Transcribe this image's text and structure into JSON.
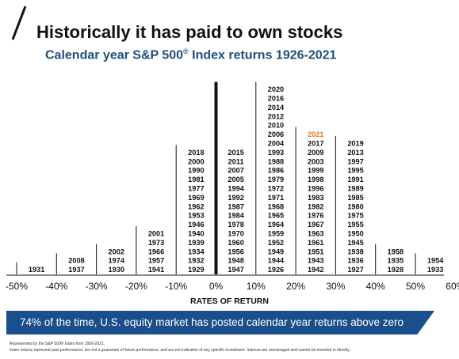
{
  "header": {
    "title": "Historically it has paid to own stocks",
    "subtitle": "Calendar year S&P 500",
    "subtitle_mark": "®",
    "subtitle_suffix": " Index returns 1926-2021"
  },
  "chart_data": {
    "type": "histogram",
    "xlabel": "RATES OF RETURN",
    "x_ticks": [
      "-50%",
      "-40%",
      "-30%",
      "-20%",
      "-10%",
      "0%",
      "10%",
      "20%",
      "30%",
      "40%",
      "50%",
      "60%"
    ],
    "bins": [
      {
        "range": [
          -50,
          -40
        ],
        "years": [
          "1931"
        ]
      },
      {
        "range": [
          -40,
          -30
        ],
        "years": [
          "2008",
          "1937"
        ]
      },
      {
        "range": [
          -30,
          -20
        ],
        "years": [
          "2002",
          "1974",
          "1930"
        ]
      },
      {
        "range": [
          -20,
          -10
        ],
        "years": [
          "2001",
          "1973",
          "1966",
          "1957",
          "1941"
        ]
      },
      {
        "range": [
          -10,
          0
        ],
        "years": [
          "2018",
          "2000",
          "1990",
          "1981",
          "1977",
          "1969",
          "1962",
          "1953",
          "1946",
          "1940",
          "1939",
          "1934",
          "1932",
          "1929"
        ]
      },
      {
        "range": [
          0,
          10
        ],
        "years": [
          "2015",
          "2011",
          "2007",
          "2005",
          "1994",
          "1992",
          "1987",
          "1984",
          "1978",
          "1970",
          "1960",
          "1956",
          "1948",
          "1947"
        ]
      },
      {
        "range": [
          10,
          20
        ],
        "years": [
          "2020",
          "2016",
          "2014",
          "2012",
          "2010",
          "2006",
          "2004",
          "1993",
          "1988",
          "1986",
          "1979",
          "1972",
          "1971",
          "1968",
          "1965",
          "1964",
          "1959",
          "1952",
          "1949",
          "1944",
          "1926"
        ]
      },
      {
        "range": [
          20,
          30
        ],
        "years": [
          "2021",
          "2017",
          "2009",
          "2003",
          "1999",
          "1998",
          "1996",
          "1983",
          "1982",
          "1976",
          "1967",
          "1963",
          "1961",
          "1951",
          "1943",
          "1942"
        ]
      },
      {
        "range": [
          30,
          40
        ],
        "years": [
          "2019",
          "2013",
          "1997",
          "1995",
          "1991",
          "1989",
          "1985",
          "1980",
          "1975",
          "1955",
          "1950",
          "1945",
          "1938",
          "1936",
          "1927"
        ]
      },
      {
        "range": [
          40,
          50
        ],
        "years": [
          "1958",
          "1935",
          "1928"
        ]
      },
      {
        "range": [
          50,
          60
        ],
        "years": [
          "1954",
          "1933"
        ]
      }
    ],
    "highlight_year": "2021",
    "highlight_color": "#e07b1a",
    "zero_line": true
  },
  "banner": {
    "text": "74% of the time, U.S. equity market has posted calendar year returns above zero",
    "color": "#1a4f8c"
  },
  "footnotes": [
    "Represented by the S&P 500® Index from 1926-2021.",
    "Index returns represent past performance, are not a guarantee of future performance, and are not indicative of any specific investment. Indexes are unmanaged and cannot be invested in directly."
  ]
}
